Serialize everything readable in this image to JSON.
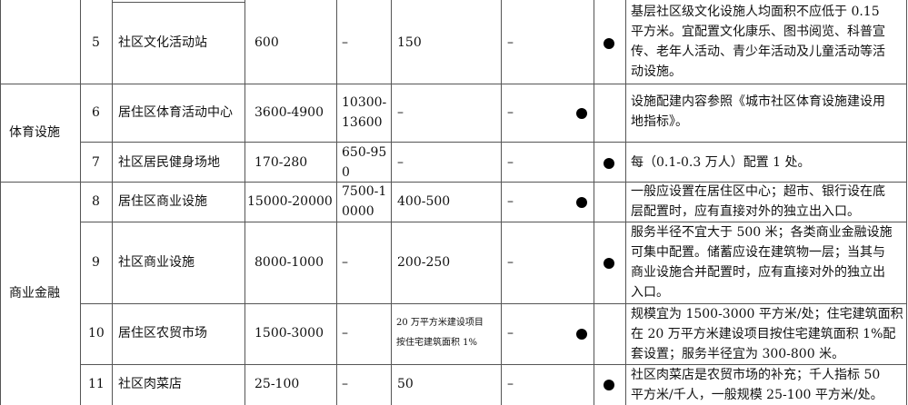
{
  "groups": [
    {
      "name": ""
    },
    {
      "name": "体育设施"
    },
    {
      "name": "商业金融"
    }
  ],
  "rows": [
    {
      "no": "5",
      "item": "社区文化活动站",
      "col3": "600",
      "col4": "–",
      "col5": "150",
      "col6": "–",
      "dot_a": false,
      "dot_b": true,
      "note_lines": [
        "基层社区级文化设施人均面积不应低于 0.15",
        "平方米。宜配置文化康乐、图书阅览、科普宣",
        "传、老年人活动、青少年活动及儿童活动等活",
        "动设施。"
      ]
    },
    {
      "no": "6",
      "item": "居住区体育活动中心",
      "col3": "3600-4900",
      "col4_lines": [
        "10300-",
        "13600"
      ],
      "col5": "–",
      "col6": "–",
      "dot_a": true,
      "dot_b": false,
      "note_lines": [
        "设施配建内容参照《城市社区体育设施建设用",
        "地指标》。"
      ]
    },
    {
      "no": "7",
      "item": "社区居民健身场地",
      "col3": "170-280",
      "col4_lines": [
        "650-95",
        "0"
      ],
      "col5": "–",
      "col6": "–",
      "dot_a": false,
      "dot_b": true,
      "note_lines": [
        "每（0.1-0.3 万人）配置 1 处。"
      ]
    },
    {
      "no": "8",
      "item": "居住区商业设施",
      "col3": "15000-20000",
      "col4_lines": [
        "7500-1",
        "0000"
      ],
      "col5": "400-500",
      "col6": "–",
      "dot_a": true,
      "dot_b": false,
      "note_lines": [
        "一般应设置在居住区中心；超市、银行设在底",
        "层配置时，应有直接对外的独立出入口。"
      ]
    },
    {
      "no": "9",
      "item": "社区商业设施",
      "col3": "8000-1000",
      "col4": "–",
      "col5": "200-250",
      "col6": "–",
      "dot_a": false,
      "dot_b": true,
      "note_lines": [
        "服务半径不宜大于 500 米；各类商业金融设施",
        "可集中配置。储蓄应设在建筑物一层；当其与",
        "商业设施合并配置时，应有直接对外的独立出",
        "入口。"
      ]
    },
    {
      "no": "10",
      "item": "居住区农贸市场",
      "col3": "1500-3000",
      "col4": "–",
      "col5_lines": [
        "20 万平方米建设项目",
        "按住宅建筑面积 1%"
      ],
      "col6": "–",
      "dot_a": true,
      "dot_b": false,
      "note_lines": [
        "规模宜为 1500-3000 平方米/处；住宅建筑面积",
        "在 20 万平方米建设项目按住宅建筑面积 1%配",
        "套设置；服务半径宜为 300-800 米。"
      ]
    },
    {
      "no": "11",
      "item": "社区肉菜店",
      "col3": "25-100",
      "col4": "–",
      "col5": "50",
      "col6": "–",
      "dot_a": false,
      "dot_b": true,
      "note_lines": [
        "社区肉菜店是农贸市场的补充；千人指标 50",
        "平方米/千人，一般规模 25-100 平方米/处。"
      ]
    }
  ]
}
